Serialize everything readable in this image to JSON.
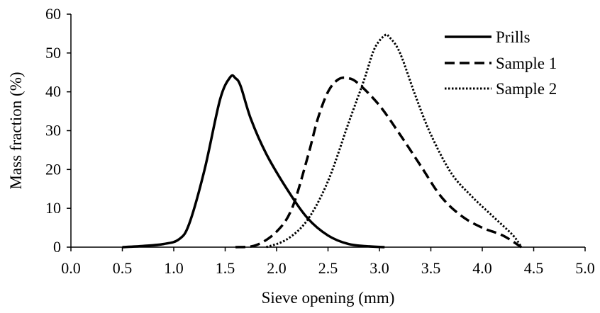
{
  "chart_data": {
    "type": "line",
    "title": "",
    "xlabel": "Sieve opening (mm)",
    "ylabel": "Mass fraction (%)",
    "xlim": [
      0,
      5
    ],
    "ylim": [
      0,
      60
    ],
    "x_ticks": [
      "0.0",
      "0.5",
      "1.0",
      "1.5",
      "2.0",
      "2.5",
      "3.0",
      "3.5",
      "4.0",
      "4.5",
      "5.0"
    ],
    "y_ticks": [
      "0",
      "10",
      "20",
      "30",
      "40",
      "50",
      "60"
    ],
    "grid": false,
    "legend_position": "top-right",
    "series": [
      {
        "name": "Prills",
        "style": "solid",
        "x": [
          0.5,
          0.7,
          0.9,
          1.05,
          1.15,
          1.3,
          1.45,
          1.55,
          1.6,
          1.65,
          1.75,
          1.9,
          2.1,
          2.3,
          2.5,
          2.7,
          2.9,
          3.05
        ],
        "values": [
          0,
          0.3,
          0.8,
          2.0,
          6.0,
          20.0,
          38.0,
          43.8,
          43.5,
          41.5,
          33.0,
          24.0,
          15.0,
          7.5,
          3.0,
          0.8,
          0.2,
          0
        ]
      },
      {
        "name": "Sample 1",
        "style": "dashed",
        "x": [
          1.6,
          1.8,
          2.0,
          2.15,
          2.3,
          2.4,
          2.5,
          2.6,
          2.7,
          2.8,
          3.0,
          3.2,
          3.4,
          3.6,
          3.8,
          4.0,
          4.2,
          4.38
        ],
        "values": [
          0,
          0.5,
          4.0,
          10.0,
          23.0,
          33.0,
          40.0,
          43.2,
          43.5,
          42.0,
          36.5,
          29.0,
          21.0,
          13.0,
          8.0,
          5.0,
          3.0,
          0
        ]
      },
      {
        "name": "Sample 2",
        "style": "dotted",
        "x": [
          1.9,
          2.1,
          2.3,
          2.5,
          2.7,
          2.85,
          2.95,
          3.05,
          3.1,
          3.2,
          3.35,
          3.5,
          3.7,
          3.9,
          4.1,
          4.3,
          4.38
        ],
        "values": [
          0,
          2.0,
          7.0,
          17.0,
          32.0,
          43.0,
          51.0,
          54.5,
          54.0,
          50.0,
          39.0,
          29.0,
          19.0,
          13.0,
          8.0,
          3.0,
          0
        ]
      }
    ]
  }
}
